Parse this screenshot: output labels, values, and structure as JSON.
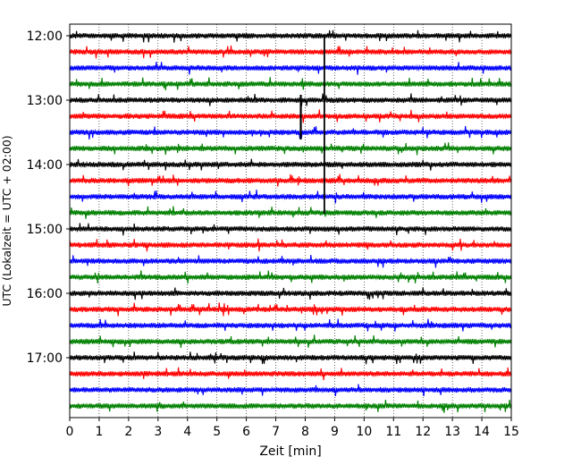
{
  "chart_data": {
    "type": "line",
    "title": "",
    "xlabel": "Zeit  [min]",
    "ylabel": "UTC (Lokalzeit = UTC + 02:00)",
    "xlim": [
      0,
      15
    ],
    "x_ticks": [
      0,
      1,
      2,
      3,
      4,
      5,
      6,
      7,
      8,
      9,
      10,
      11,
      12,
      13,
      14,
      15
    ],
    "x_tick_labels": [
      "0",
      "1",
      "2",
      "3",
      "4",
      "5",
      "6",
      "7",
      "8",
      "9",
      "10",
      "11",
      "12",
      "13",
      "14",
      "15"
    ],
    "y_tick_labels": [
      "12:00",
      "13:00",
      "14:00",
      "15:00",
      "16:00",
      "17:00"
    ],
    "grid": "vertical-dotted",
    "legend": "none",
    "trace_start": "12:00",
    "trace_interval_min": 15,
    "trace_count": 24,
    "trace_colors": [
      "#000000",
      "#ff0000",
      "#0000ff",
      "#008000"
    ],
    "events": [
      {
        "start_min": 7.85,
        "start_trace": "13:00",
        "end_trace": "13:30",
        "note": "large spike"
      },
      {
        "start_min": 8.65,
        "start_trace": "12:00",
        "end_trace": "14:45",
        "note": "vertical line"
      }
    ]
  }
}
